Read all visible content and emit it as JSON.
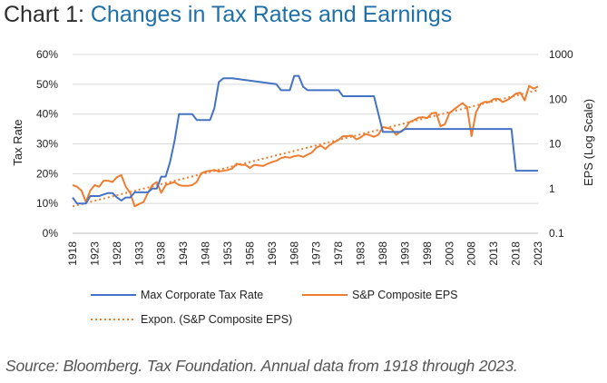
{
  "title": {
    "prefix": "Chart 1: ",
    "main": "Changes in Tax Rates and Earnings"
  },
  "source": "Source: Bloomberg. Tax Foundation. Annual data from 1918 through 2023.",
  "chart_data": {
    "type": "line",
    "left_axis": {
      "label": "Tax Rate",
      "ticks": [
        "0%",
        "10%",
        "20%",
        "30%",
        "40%",
        "50%",
        "60%"
      ],
      "ylim": [
        0,
        60
      ]
    },
    "right_axis": {
      "label": "EPS (Log Scale)",
      "ticks": [
        "0.1",
        "1",
        "10",
        "100",
        "1000"
      ],
      "scale": "log",
      "ylim": [
        0.1,
        1000
      ]
    },
    "x_tick_labels": [
      "1918",
      "1923",
      "1928",
      "1933",
      "1938",
      "1943",
      "1948",
      "1953",
      "1958",
      "1963",
      "1968",
      "1973",
      "1978",
      "1983",
      "1988",
      "1993",
      "1998",
      "2003",
      "2008",
      "2013",
      "2018",
      "2023"
    ],
    "xlim": [
      1918,
      2023
    ],
    "grid": "horizontal",
    "legend_position": "bottom",
    "series": [
      {
        "name": "Max Corporate Tax Rate",
        "axis": "left",
        "color": "#4472c4",
        "style": "solid",
        "points": [
          [
            1918,
            12
          ],
          [
            1919,
            10
          ],
          [
            1920,
            10
          ],
          [
            1921,
            10
          ],
          [
            1922,
            12.5
          ],
          [
            1923,
            12.5
          ],
          [
            1924,
            12.5
          ],
          [
            1925,
            13
          ],
          [
            1926,
            13.5
          ],
          [
            1927,
            13.5
          ],
          [
            1928,
            12
          ],
          [
            1929,
            11
          ],
          [
            1930,
            12
          ],
          [
            1931,
            12
          ],
          [
            1932,
            13.75
          ],
          [
            1933,
            13.75
          ],
          [
            1934,
            13.75
          ],
          [
            1935,
            13.75
          ],
          [
            1936,
            15
          ],
          [
            1937,
            15
          ],
          [
            1938,
            19
          ],
          [
            1939,
            19
          ],
          [
            1940,
            24
          ],
          [
            1941,
            31
          ],
          [
            1942,
            40
          ],
          [
            1945,
            40
          ],
          [
            1946,
            38
          ],
          [
            1947,
            38
          ],
          [
            1948,
            38
          ],
          [
            1949,
            38
          ],
          [
            1950,
            42
          ],
          [
            1951,
            50.75
          ],
          [
            1952,
            52
          ],
          [
            1953,
            52
          ],
          [
            1954,
            52
          ],
          [
            1964,
            50
          ],
          [
            1965,
            48
          ],
          [
            1967,
            48
          ],
          [
            1968,
            52.8
          ],
          [
            1969,
            52.8
          ],
          [
            1970,
            49.2
          ],
          [
            1971,
            48
          ],
          [
            1978,
            48
          ],
          [
            1979,
            46
          ],
          [
            1986,
            46
          ],
          [
            1987,
            40
          ],
          [
            1988,
            34
          ],
          [
            1992,
            34
          ],
          [
            1993,
            35
          ],
          [
            2017,
            35
          ],
          [
            2018,
            21
          ],
          [
            2023,
            21
          ]
        ]
      },
      {
        "name": "S&P Composite EPS",
        "axis": "right",
        "color": "#ed7d31",
        "style": "solid",
        "points": [
          [
            1918,
            1.2
          ],
          [
            1919,
            1.1
          ],
          [
            1920,
            0.9
          ],
          [
            1921,
            0.5
          ],
          [
            1922,
            0.9
          ],
          [
            1923,
            1.2
          ],
          [
            1924,
            1.1
          ],
          [
            1925,
            1.5
          ],
          [
            1926,
            1.5
          ],
          [
            1927,
            1.4
          ],
          [
            1928,
            1.8
          ],
          [
            1929,
            2.0
          ],
          [
            1930,
            1.1
          ],
          [
            1931,
            0.8
          ],
          [
            1932,
            0.4
          ],
          [
            1933,
            0.45
          ],
          [
            1934,
            0.5
          ],
          [
            1935,
            0.8
          ],
          [
            1936,
            1.2
          ],
          [
            1937,
            1.4
          ],
          [
            1938,
            0.8
          ],
          [
            1939,
            1.2
          ],
          [
            1940,
            1.3
          ],
          [
            1941,
            1.4
          ],
          [
            1942,
            1.2
          ],
          [
            1943,
            1.15
          ],
          [
            1944,
            1.15
          ],
          [
            1945,
            1.2
          ],
          [
            1946,
            1.4
          ],
          [
            1947,
            2.2
          ],
          [
            1948,
            2.4
          ],
          [
            1949,
            2.5
          ],
          [
            1950,
            2.6
          ],
          [
            1951,
            2.4
          ],
          [
            1952,
            2.5
          ],
          [
            1953,
            2.6
          ],
          [
            1954,
            2.8
          ],
          [
            1955,
            3.6
          ],
          [
            1956,
            3.4
          ],
          [
            1957,
            3.4
          ],
          [
            1958,
            2.9
          ],
          [
            1959,
            3.4
          ],
          [
            1960,
            3.3
          ],
          [
            1961,
            3.2
          ],
          [
            1962,
            3.6
          ],
          [
            1963,
            3.9
          ],
          [
            1964,
            4.2
          ],
          [
            1965,
            4.8
          ],
          [
            1966,
            5.1
          ],
          [
            1967,
            4.9
          ],
          [
            1968,
            5.3
          ],
          [
            1969,
            5.5
          ],
          [
            1970,
            5.1
          ],
          [
            1971,
            5.7
          ],
          [
            1972,
            6.4
          ],
          [
            1973,
            8.2
          ],
          [
            1974,
            9.1
          ],
          [
            1975,
            7.7
          ],
          [
            1976,
            9.4
          ],
          [
            1977,
            10.9
          ],
          [
            1978,
            12.3
          ],
          [
            1979,
            14.9
          ],
          [
            1980,
            14.8
          ],
          [
            1981,
            15.4
          ],
          [
            1982,
            12.6
          ],
          [
            1983,
            14.0
          ],
          [
            1984,
            16.6
          ],
          [
            1985,
            15.7
          ],
          [
            1986,
            14.4
          ],
          [
            1987,
            16.0
          ],
          [
            1988,
            23.8
          ],
          [
            1989,
            22.9
          ],
          [
            1990,
            21.3
          ],
          [
            1991,
            15.9
          ],
          [
            1992,
            19.1
          ],
          [
            1993,
            21.9
          ],
          [
            1994,
            30.6
          ],
          [
            1995,
            33.9
          ],
          [
            1996,
            38.7
          ],
          [
            1997,
            39.6
          ],
          [
            1998,
            37.7
          ],
          [
            1999,
            48.2
          ],
          [
            2000,
            50.0
          ],
          [
            2001,
            24.7
          ],
          [
            2002,
            27.6
          ],
          [
            2003,
            48.7
          ],
          [
            2004,
            58.6
          ],
          [
            2005,
            69.9
          ],
          [
            2006,
            81.5
          ],
          [
            2007,
            66.2
          ],
          [
            2008,
            14.9
          ],
          [
            2009,
            50.9
          ],
          [
            2010,
            77.4
          ],
          [
            2011,
            87.0
          ],
          [
            2012,
            86.5
          ],
          [
            2013,
            100.2
          ],
          [
            2014,
            102.3
          ],
          [
            2015,
            86.5
          ],
          [
            2016,
            94.6
          ],
          [
            2017,
            109.9
          ],
          [
            2018,
            132.4
          ],
          [
            2019,
            139.5
          ],
          [
            2020,
            94.1
          ],
          [
            2021,
            197.9
          ],
          [
            2022,
            172.8
          ],
          [
            2023,
            192.4
          ]
        ]
      },
      {
        "name": "Expon. (S&P Composite EPS)",
        "axis": "right",
        "color": "#ed7d31",
        "style": "dotted",
        "points": [
          [
            1918,
            0.4
          ],
          [
            2023,
            160
          ]
        ]
      }
    ]
  }
}
